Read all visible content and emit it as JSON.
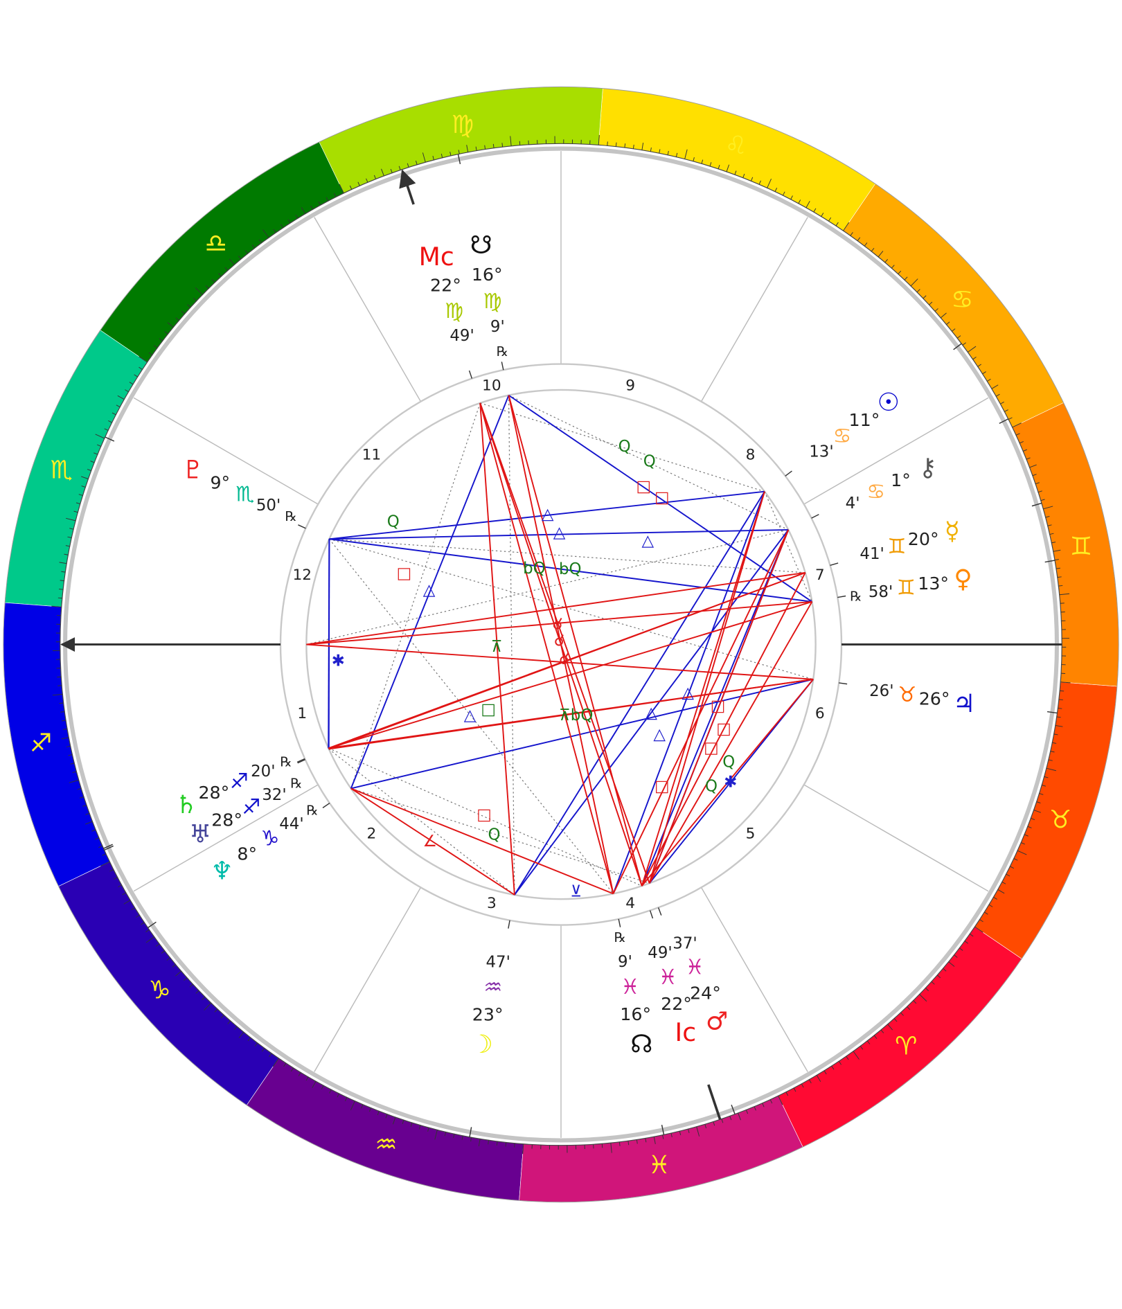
{
  "glyph_color": "#ffee22",
  "signs": [
    {
      "glyph": "♈",
      "color": "#ff0a33",
      "accent": "#ee1111"
    },
    {
      "glyph": "♉",
      "color": "#ff4a00",
      "accent": "#ff6a00"
    },
    {
      "glyph": "♊",
      "color": "#ff8400",
      "accent": "#f09a00"
    },
    {
      "glyph": "♋",
      "color": "#ffaa00",
      "accent": "#ffaa44"
    },
    {
      "glyph": "♌",
      "color": "#ffe000",
      "accent": "#e6c800"
    },
    {
      "glyph": "♍",
      "color": "#a8de00",
      "accent": "#a8c800"
    },
    {
      "glyph": "♎",
      "color": "#007a00",
      "accent": "#007a00"
    },
    {
      "glyph": "♏",
      "color": "#00c98a",
      "accent": "#00b890"
    },
    {
      "glyph": "♐",
      "color": "#0000e6",
      "accent": "#1111cc"
    },
    {
      "glyph": "♑",
      "color": "#2a00b4",
      "accent": "#2211cc"
    },
    {
      "glyph": "♒",
      "color": "#680090",
      "accent": "#8833aa"
    },
    {
      "glyph": "♓",
      "color": "#d0157a",
      "accent": "#cc2299"
    }
  ],
  "houses": [
    1,
    2,
    3,
    4,
    5,
    6,
    7,
    8,
    9,
    10,
    11,
    12
  ],
  "points": [
    {
      "glyph": "Mc",
      "color": "#ee1111",
      "degree": "22°",
      "sign": "♍",
      "minutes": "49'"
    },
    {
      "glyph": "☋",
      "color": "#111111",
      "degree": "16°",
      "sign": "♍",
      "minutes": "9'",
      "retrograde": "℞"
    },
    {
      "glyph": "☉",
      "color": "#0000cc",
      "degree": "11°",
      "sign": "♋",
      "minutes": "13'"
    },
    {
      "glyph": "⚷",
      "color": "#555555",
      "degree": "1°",
      "sign": "♋",
      "minutes": "4'"
    },
    {
      "glyph": "☿",
      "color": "#f0b000",
      "degree": "20°",
      "sign": "♊",
      "minutes": "41'"
    },
    {
      "glyph": "♀",
      "color": "#ff8800",
      "degree": "13°",
      "sign": "♊",
      "minutes": "58'",
      "retrograde": "℞"
    },
    {
      "glyph": "♃",
      "color": "#1111cc",
      "degree": "26°",
      "sign": "♉",
      "minutes": "26'"
    },
    {
      "glyph": "♂",
      "color": "#ee2222",
      "degree": "24°",
      "sign": "♓",
      "minutes": "37'"
    },
    {
      "glyph": "Ic",
      "color": "#ee1111",
      "degree": "22°",
      "sign": "♓",
      "minutes": "49'"
    },
    {
      "glyph": "☊",
      "color": "#111111",
      "degree": "16°",
      "sign": "♓",
      "minutes": "9'",
      "retrograde": "℞"
    },
    {
      "glyph": "☽",
      "color": "#eeee00",
      "degree": "23°",
      "sign": "♒",
      "minutes": "47'"
    },
    {
      "glyph": "♆",
      "color": "#00bbaa",
      "degree": "8°",
      "sign": "♑",
      "minutes": "44'",
      "retrograde": "℞"
    },
    {
      "glyph": "♅",
      "color": "#444499",
      "degree": "28°",
      "sign": "♐",
      "minutes": "32'",
      "retrograde": "℞"
    },
    {
      "glyph": "♄",
      "color": "#22cc22",
      "degree": "28°",
      "sign": "♐",
      "minutes": "20'",
      "retrograde": "℞"
    },
    {
      "glyph": "♇",
      "color": "#ee2222",
      "degree": "9°",
      "sign": "♏",
      "minutes": "50'",
      "retrograde": "℞"
    }
  ],
  "aspect_symbols": [
    {
      "symbol": "Q",
      "color": "#1a7a1a"
    },
    {
      "symbol": "Q",
      "color": "#1a7a1a"
    },
    {
      "symbol": "□",
      "color": "#e02020"
    },
    {
      "symbol": "□",
      "color": "#e02020"
    },
    {
      "symbol": "△",
      "color": "#2020cc"
    },
    {
      "symbol": "△",
      "color": "#2020cc"
    },
    {
      "symbol": "△",
      "color": "#2020cc"
    },
    {
      "symbol": "Q",
      "color": "#1a7a1a"
    },
    {
      "symbol": "□",
      "color": "#e02020"
    },
    {
      "symbol": "△",
      "color": "#2020cc"
    },
    {
      "symbol": "bQ",
      "color": "#1a7a1a"
    },
    {
      "symbol": "bQ",
      "color": "#1a7a1a"
    },
    {
      "symbol": "⊼",
      "color": "#1a7a1a"
    },
    {
      "symbol": "□",
      "color": "#1a7a1a"
    },
    {
      "symbol": "△",
      "color": "#2020cc"
    },
    {
      "symbol": "⊼bQ",
      "color": "#1a7a1a"
    },
    {
      "symbol": "△",
      "color": "#2020cc"
    },
    {
      "symbol": "△",
      "color": "#2020cc"
    },
    {
      "symbol": "△",
      "color": "#2020cc"
    },
    {
      "symbol": "□",
      "color": "#e02020"
    },
    {
      "symbol": "□",
      "color": "#e02020"
    },
    {
      "symbol": "□",
      "color": "#e02020"
    },
    {
      "symbol": "Q",
      "color": "#1a7a1a"
    },
    {
      "symbol": "Q",
      "color": "#1a7a1a"
    },
    {
      "symbol": "✱",
      "color": "#2020cc"
    },
    {
      "symbol": "□",
      "color": "#e02020"
    },
    {
      "symbol": "□",
      "color": "#e02020"
    },
    {
      "symbol": "Q",
      "color": "#1a7a1a"
    },
    {
      "symbol": "∠",
      "color": "#e02020"
    },
    {
      "symbol": "⊻",
      "color": "#2020cc"
    },
    {
      "symbol": "✱",
      "color": "#2020cc"
    },
    {
      "symbol": "☌",
      "color": "#e02020"
    },
    {
      "symbol": "☌",
      "color": "#e02020"
    },
    {
      "symbol": "☌",
      "color": "#e02020"
    }
  ]
}
